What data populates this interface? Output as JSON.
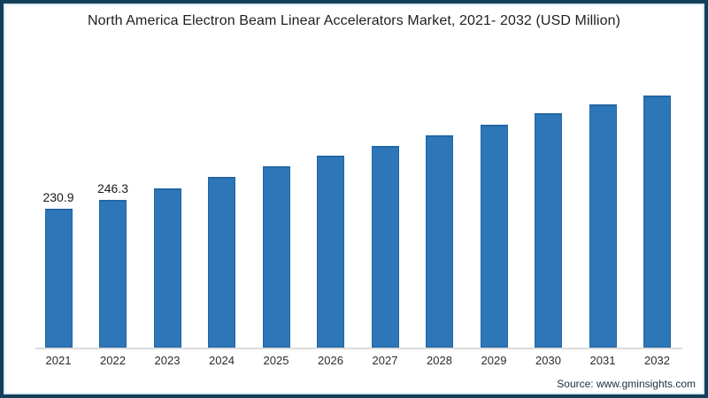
{
  "frame": {
    "outer_border_color": "#143F5A",
    "inner_line_color": "#D8E9F3",
    "background_color": "#FFFFFF"
  },
  "chart_data": {
    "type": "bar",
    "title": "North America Electron Beam Linear Accelerators Market, 2021- 2032 (USD Million)",
    "categories": [
      "2021",
      "2022",
      "2023",
      "2024",
      "2025",
      "2026",
      "2027",
      "2028",
      "2029",
      "2030",
      "2031",
      "2032"
    ],
    "values": [
      230.9,
      246.3,
      265.1,
      284.2,
      301.9,
      319.6,
      335.8,
      353.4,
      371.1,
      390.3,
      405.0,
      419.7
    ],
    "data_labels": [
      "230.9",
      "246.3",
      "",
      "",
      "",
      "",
      "",
      "",
      "",
      "",
      "",
      ""
    ],
    "xlabel": "",
    "ylabel": "",
    "ylim": [
      0,
      446
    ],
    "grid": false,
    "legend": "none",
    "y_axis_visible": false,
    "bar_color": "#2D76B8",
    "bar_edge_color": "#2366A4",
    "axis_line_color": "#DCDCDC",
    "value_label_color": "#1A1A1A",
    "tick_label_color": "#2B2B2B",
    "title_color": "#1F1F1F"
  },
  "footer": {
    "source_label": "Source: www.gminsights.com",
    "source_color": "#16323F"
  }
}
